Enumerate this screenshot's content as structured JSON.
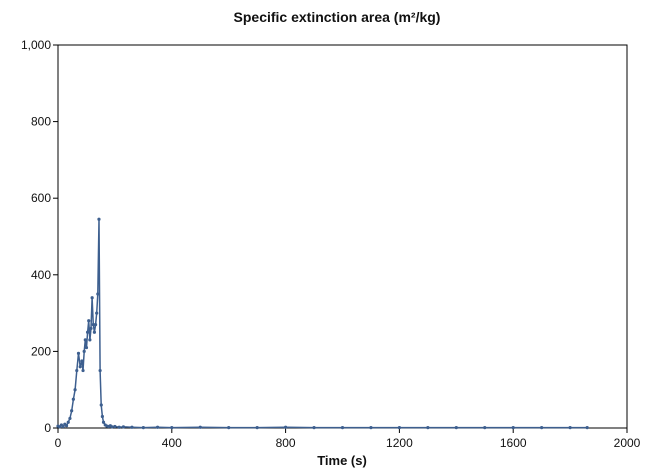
{
  "chart_data": {
    "type": "line",
    "title": "Specific extinction area (m²/kg)",
    "xlabel": "Time (s)",
    "ylabel": "",
    "xlim": [
      0,
      2000
    ],
    "ylim": [
      0,
      1000
    ],
    "x_ticks": [
      0,
      400,
      800,
      1200,
      1600,
      2000
    ],
    "x_tick_labels": [
      "0",
      "400",
      "800",
      "1200",
      "1600",
      "2000"
    ],
    "y_ticks": [
      0,
      200,
      400,
      600,
      800,
      1000
    ],
    "y_tick_labels": [
      "0",
      "200",
      "400",
      "600",
      "800",
      "1,000"
    ],
    "grid": false,
    "legend": "none",
    "series": [
      {
        "color": "#3d5f8f",
        "x": [
          0,
          6,
          12,
          18,
          24,
          30,
          36,
          42,
          48,
          54,
          60,
          66,
          72,
          78,
          84,
          88,
          92,
          96,
          100,
          104,
          108,
          112,
          116,
          120,
          124,
          128,
          132,
          136,
          140,
          144,
          148,
          152,
          156,
          160,
          166,
          172,
          178,
          184,
          190,
          200,
          215,
          230,
          260,
          300,
          350,
          400,
          500,
          600,
          700,
          800,
          900,
          1000,
          1100,
          1200,
          1300,
          1400,
          1500,
          1600,
          1700,
          1800,
          1860
        ],
        "y": [
          5,
          3,
          8,
          4,
          10,
          6,
          15,
          25,
          45,
          75,
          100,
          150,
          195,
          160,
          175,
          150,
          200,
          230,
          210,
          250,
          280,
          230,
          260,
          340,
          270,
          250,
          270,
          300,
          350,
          545,
          150,
          60,
          30,
          15,
          8,
          5,
          4,
          6,
          3,
          4,
          2,
          3,
          2,
          1,
          2,
          1,
          2,
          1,
          1,
          2,
          1,
          1,
          1,
          1,
          1,
          1,
          1,
          1,
          1,
          1,
          1
        ]
      }
    ]
  }
}
